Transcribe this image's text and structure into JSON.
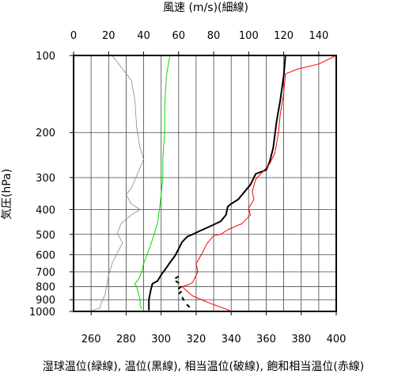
{
  "chart_data": {
    "type": "line",
    "top_axis": {
      "label": "風速 (m/s)(細線)",
      "range": [
        0,
        150
      ],
      "ticks": [
        0,
        20,
        40,
        60,
        80,
        100,
        120,
        140
      ]
    },
    "bottom_axis": {
      "label": "湿球温位(緑線), 温位(黒線), 相当温位(破線), 飽和相当温位(赤線)",
      "range": [
        250,
        400
      ],
      "ticks": [
        260,
        280,
        300,
        320,
        340,
        360,
        380,
        400
      ]
    },
    "y_axis": {
      "label": "気圧(hPa)",
      "scale": "log",
      "reversed": true,
      "range": [
        100,
        1000
      ],
      "ticks": [
        100,
        200,
        300,
        400,
        500,
        600,
        700,
        800,
        900,
        1000
      ]
    },
    "grid": true,
    "series": [
      {
        "color": "#888888",
        "axis": "top",
        "points": [
          [
            22,
            100
          ],
          [
            33,
            125
          ],
          [
            35,
            150
          ],
          [
            36,
            190
          ],
          [
            38,
            230
          ],
          [
            40,
            255
          ],
          [
            37,
            285
          ],
          [
            33,
            330
          ],
          [
            30,
            350
          ],
          [
            33,
            380
          ],
          [
            38,
            400
          ],
          [
            33,
            420
          ],
          [
            27,
            455
          ],
          [
            25,
            495
          ],
          [
            28,
            540
          ],
          [
            25,
            590
          ],
          [
            22,
            650
          ],
          [
            20,
            720
          ],
          [
            19,
            790
          ],
          [
            18,
            860
          ],
          [
            16,
            920
          ],
          [
            15,
            970
          ],
          [
            9,
            1000
          ]
        ]
      },
      {
        "color": "#00dd00",
        "axis": "bottom",
        "points": [
          [
            305,
            100
          ],
          [
            303,
            120
          ],
          [
            302,
            160
          ],
          [
            302,
            200
          ],
          [
            301,
            250
          ],
          [
            301,
            300
          ],
          [
            300,
            350
          ],
          [
            299,
            400
          ],
          [
            298,
            450
          ],
          [
            296,
            500
          ],
          [
            294,
            550
          ],
          [
            292,
            600
          ],
          [
            290,
            650
          ],
          [
            289,
            700
          ],
          [
            287,
            750
          ],
          [
            285,
            780
          ],
          [
            286,
            800
          ],
          [
            287,
            850
          ],
          [
            288,
            900
          ],
          [
            288,
            950
          ],
          [
            289,
            980
          ]
        ]
      },
      {
        "color": "#000000",
        "axis": "bottom",
        "points": [
          [
            371,
            100
          ],
          [
            370,
            120
          ],
          [
            368,
            150
          ],
          [
            366,
            180
          ],
          [
            364,
            230
          ],
          [
            362,
            260
          ],
          [
            360,
            280
          ],
          [
            354,
            290
          ],
          [
            351,
            320
          ],
          [
            347,
            345
          ],
          [
            344,
            365
          ],
          [
            340,
            380
          ],
          [
            338,
            390
          ],
          [
            337,
            420
          ],
          [
            334,
            445
          ],
          [
            328,
            465
          ],
          [
            322,
            485
          ],
          [
            318,
            500
          ],
          [
            315,
            510
          ],
          [
            312,
            535
          ],
          [
            310,
            570
          ],
          [
            308,
            605
          ],
          [
            305,
            645
          ],
          [
            303,
            675
          ],
          [
            300,
            720
          ],
          [
            298,
            760
          ],
          [
            295,
            780
          ],
          [
            294,
            830
          ],
          [
            293,
            900
          ],
          [
            293,
            990
          ]
        ]
      },
      {
        "color": "#000000",
        "axis": "bottom",
        "dashed": true,
        "points": [
          [
            310,
            730
          ],
          [
            307,
            750
          ],
          [
            310,
            775
          ],
          [
            312,
            795
          ],
          [
            310,
            815
          ],
          [
            312,
            830
          ],
          [
            310,
            855
          ],
          [
            312,
            880
          ],
          [
            314,
            930
          ],
          [
            318,
            990
          ]
        ]
      },
      {
        "color": "#ff0000",
        "axis": "bottom",
        "points": [
          [
            400,
            100
          ],
          [
            390,
            108
          ],
          [
            378,
            113
          ],
          [
            371,
            118
          ],
          [
            370,
            140
          ],
          [
            368,
            170
          ],
          [
            367,
            200
          ],
          [
            366,
            220
          ],
          [
            365,
            240
          ],
          [
            362,
            265
          ],
          [
            358,
            285
          ],
          [
            354,
            305
          ],
          [
            352,
            340
          ],
          [
            353,
            365
          ],
          [
            350,
            395
          ],
          [
            351,
            420
          ],
          [
            348,
            440
          ],
          [
            346,
            455
          ],
          [
            344,
            460
          ],
          [
            338,
            480
          ],
          [
            334,
            500
          ],
          [
            330,
            505
          ],
          [
            326,
            545
          ],
          [
            323,
            600
          ],
          [
            320,
            650
          ],
          [
            321,
            700
          ],
          [
            319,
            745
          ],
          [
            318,
            770
          ],
          [
            316,
            785
          ],
          [
            312,
            800
          ],
          [
            318,
            870
          ],
          [
            328,
            930
          ],
          [
            339,
            990
          ]
        ]
      }
    ]
  }
}
